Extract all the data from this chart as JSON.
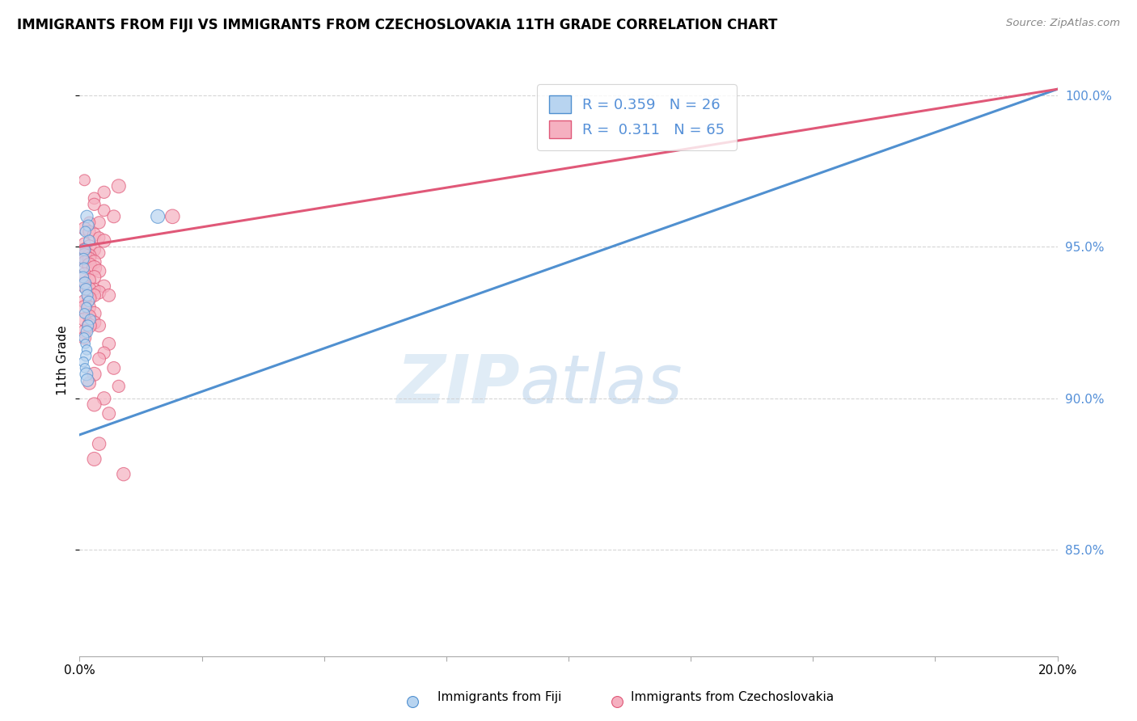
{
  "title": "IMMIGRANTS FROM FIJI VS IMMIGRANTS FROM CZECHOSLOVAKIA 11TH GRADE CORRELATION CHART",
  "source": "Source: ZipAtlas.com",
  "ylabel": "11th Grade",
  "fiji_color": "#b8d4f0",
  "czech_color": "#f5b0c0",
  "fiji_line_color": "#5090d0",
  "czech_line_color": "#e05878",
  "fiji_R": 0.359,
  "fiji_N": 26,
  "czech_R": 0.311,
  "czech_N": 65,
  "xmin": 0.0,
  "xmax": 0.2,
  "ymin": 0.815,
  "ymax": 1.01,
  "right_ytick_vals": [
    1.0,
    0.95,
    0.9,
    0.85
  ],
  "right_ytick_labels": [
    "100.0%",
    "95.0%",
    "90.0%",
    "85.0%"
  ],
  "fiji_line_x": [
    0.0,
    0.2
  ],
  "fiji_line_y": [
    0.888,
    1.002
  ],
  "czech_line_x": [
    0.0,
    0.2
  ],
  "czech_line_y": [
    0.95,
    1.002
  ],
  "fiji_scatter_x": [
    0.0015,
    0.0018,
    0.0012,
    0.002,
    0.001,
    0.0008,
    0.0009,
    0.0007,
    0.0011,
    0.0013,
    0.0016,
    0.0019,
    0.0014,
    0.001,
    0.0022,
    0.0017,
    0.0015,
    0.0009,
    0.0012,
    0.0015,
    0.0013,
    0.0008,
    0.0011,
    0.0014,
    0.0016,
    0.016
  ],
  "fiji_scatter_y": [
    0.96,
    0.957,
    0.955,
    0.952,
    0.949,
    0.946,
    0.943,
    0.94,
    0.938,
    0.936,
    0.934,
    0.932,
    0.93,
    0.928,
    0.926,
    0.924,
    0.922,
    0.92,
    0.918,
    0.916,
    0.914,
    0.912,
    0.91,
    0.908,
    0.906,
    0.96
  ],
  "fiji_scatter_size": [
    120,
    100,
    90,
    100,
    110,
    100,
    90,
    100,
    120,
    110,
    100,
    90,
    80,
    80,
    90,
    100,
    110,
    80,
    70,
    80,
    90,
    80,
    70,
    130,
    130,
    150
  ],
  "czech_scatter_x": [
    0.001,
    0.008,
    0.005,
    0.003,
    0.003,
    0.005,
    0.007,
    0.004,
    0.002,
    0.001,
    0.002,
    0.003,
    0.004,
    0.005,
    0.001,
    0.002,
    0.001,
    0.003,
    0.004,
    0.001,
    0.002,
    0.001,
    0.002,
    0.003,
    0.001,
    0.002,
    0.003,
    0.004,
    0.001,
    0.003,
    0.002,
    0.001,
    0.001,
    0.005,
    0.003,
    0.002,
    0.004,
    0.006,
    0.003,
    0.002,
    0.001,
    0.002,
    0.001,
    0.003,
    0.002,
    0.001,
    0.003,
    0.004,
    0.002,
    0.001,
    0.001,
    0.006,
    0.005,
    0.004,
    0.007,
    0.003,
    0.002,
    0.008,
    0.005,
    0.003,
    0.006,
    0.004,
    0.003,
    0.009,
    0.019
  ],
  "czech_scatter_y": [
    0.972,
    0.97,
    0.968,
    0.966,
    0.964,
    0.962,
    0.96,
    0.958,
    0.958,
    0.956,
    0.955,
    0.954,
    0.953,
    0.952,
    0.951,
    0.95,
    0.949,
    0.949,
    0.948,
    0.948,
    0.947,
    0.947,
    0.946,
    0.945,
    0.945,
    0.944,
    0.943,
    0.942,
    0.941,
    0.94,
    0.939,
    0.938,
    0.937,
    0.937,
    0.936,
    0.936,
    0.935,
    0.934,
    0.934,
    0.933,
    0.932,
    0.93,
    0.93,
    0.928,
    0.927,
    0.926,
    0.925,
    0.924,
    0.924,
    0.922,
    0.92,
    0.918,
    0.915,
    0.913,
    0.91,
    0.908,
    0.905,
    0.904,
    0.9,
    0.898,
    0.895,
    0.885,
    0.88,
    0.875,
    0.96
  ],
  "czech_scatter_size": [
    100,
    150,
    120,
    110,
    120,
    110,
    130,
    120,
    110,
    140,
    120,
    140,
    110,
    140,
    120,
    150,
    140,
    130,
    110,
    160,
    150,
    170,
    140,
    150,
    120,
    160,
    170,
    140,
    130,
    140,
    130,
    120,
    140,
    130,
    120,
    150,
    140,
    130,
    130,
    150,
    140,
    130,
    160,
    150,
    140,
    150,
    140,
    130,
    160,
    150,
    140,
    130,
    120,
    130,
    130,
    150,
    130,
    120,
    140,
    150,
    130,
    140,
    150,
    140,
    160
  ]
}
